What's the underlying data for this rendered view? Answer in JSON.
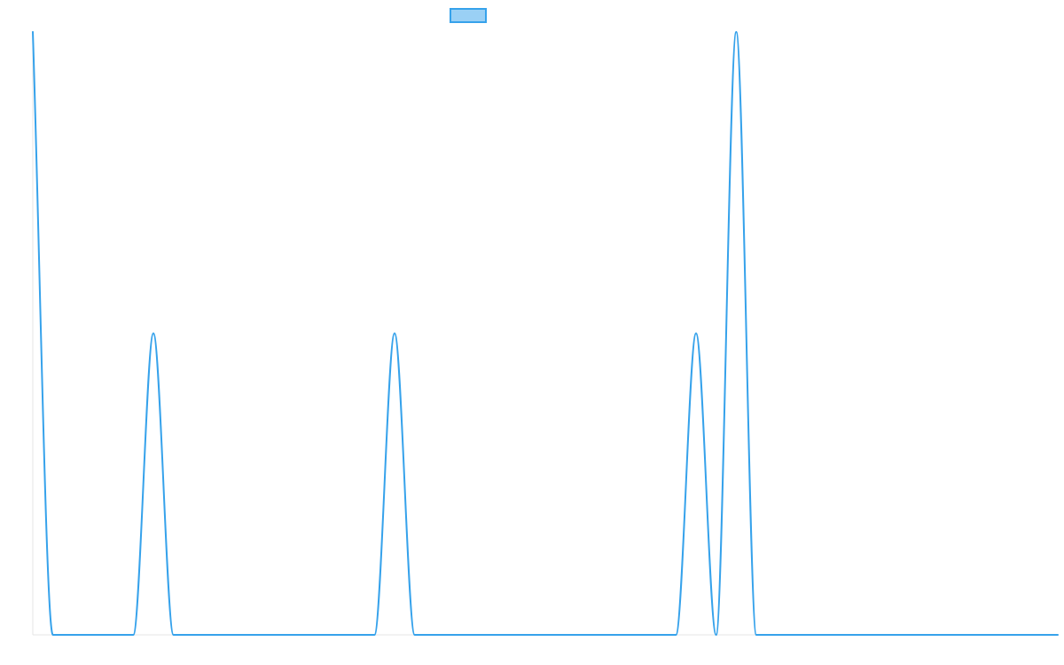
{
  "chart_data": {
    "type": "line",
    "title": "",
    "xlabel": "",
    "ylabel": "",
    "grid": false,
    "legend_position": "top-center",
    "x": [
      0,
      1,
      2,
      3,
      4,
      5,
      6,
      7,
      8,
      9,
      10,
      11,
      12,
      13,
      14,
      15,
      16,
      17,
      18,
      19,
      20,
      21,
      22,
      23,
      24,
      25,
      26,
      27,
      28,
      29,
      30,
      31,
      32,
      33,
      34,
      35,
      36,
      37,
      38,
      39,
      40,
      41,
      42,
      43,
      44,
      45,
      46,
      47,
      48,
      49,
      50,
      51
    ],
    "xlim": [
      0,
      51
    ],
    "ylim": [
      0,
      2
    ],
    "series": [
      {
        "name": "",
        "line_color": "#36a2eb",
        "fill_color": "#9ad0f5",
        "values": [
          2,
          0,
          0,
          0,
          0,
          0,
          1,
          0,
          0,
          0,
          0,
          0,
          0,
          0,
          0,
          0,
          0,
          0,
          1,
          0,
          0,
          0,
          0,
          0,
          0,
          0,
          0,
          0,
          0,
          0,
          0,
          0,
          0,
          1,
          0,
          2,
          0,
          0,
          0,
          0,
          0,
          0,
          0,
          0,
          0,
          0,
          0,
          0,
          0,
          0,
          0,
          0
        ]
      }
    ]
  }
}
